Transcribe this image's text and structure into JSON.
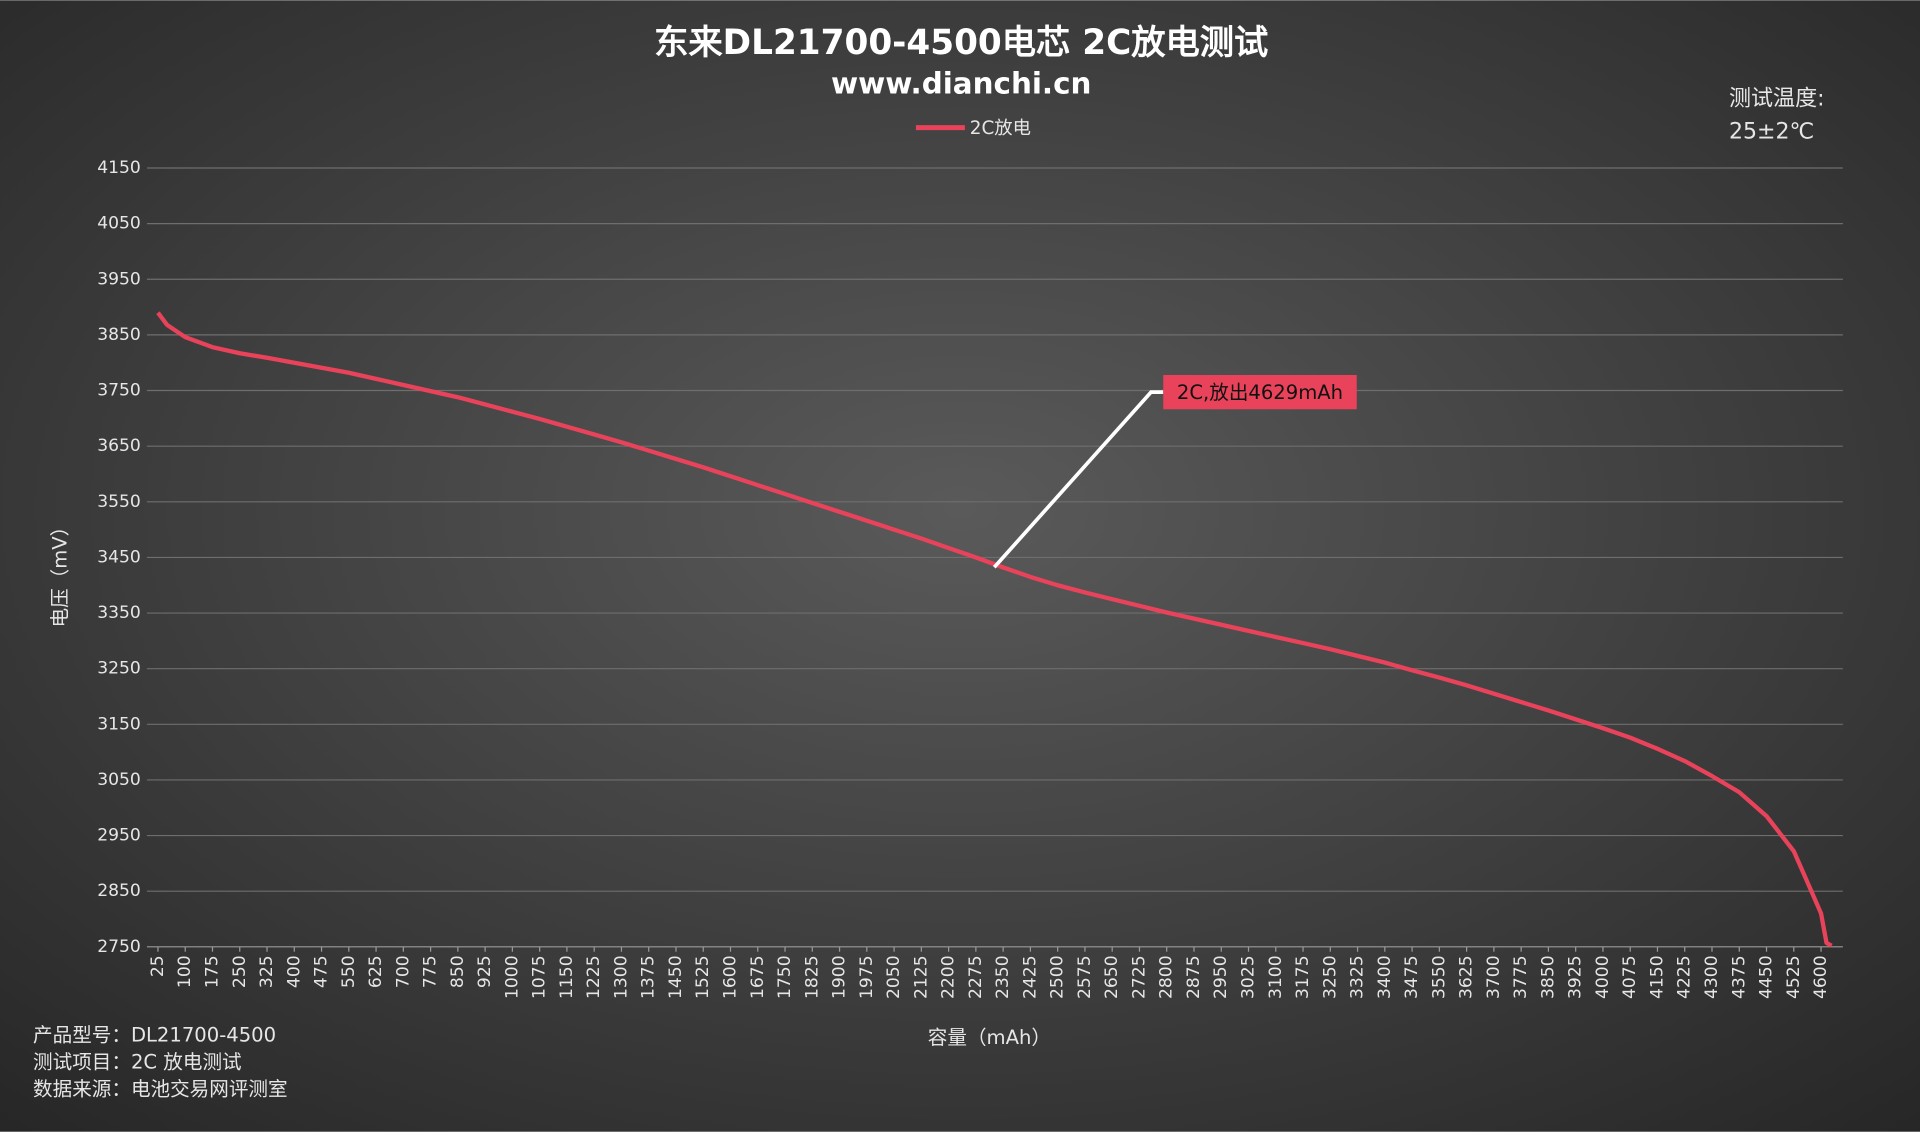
{
  "chart_data": {
    "type": "line",
    "title": "东来DL21700-4500电芯 2C放电测试",
    "subtitle": "www.dianchi.cn",
    "x_label": "容量（mAh）",
    "y_label": "电压（mV）",
    "note": [
      "测试温度:",
      "25±2℃"
    ],
    "annotations": [
      {
        "text": "2C,放出4629mAh"
      }
    ],
    "x": [
      25,
      50,
      75,
      100,
      175,
      250,
      325,
      400,
      475,
      550,
      625,
      700,
      775,
      850,
      925,
      1000,
      1075,
      1150,
      1225,
      1300,
      1375,
      1450,
      1525,
      1600,
      1675,
      1750,
      1825,
      1900,
      1975,
      2050,
      2125,
      2200,
      2275,
      2350,
      2425,
      2500,
      2575,
      2650,
      2725,
      2800,
      2875,
      2950,
      3025,
      3100,
      3175,
      3250,
      3325,
      3400,
      3475,
      3550,
      3625,
      3700,
      3775,
      3850,
      3925,
      4000,
      4075,
      4150,
      4225,
      4300,
      4375,
      4450,
      4525,
      4560,
      4600,
      4615,
      4629
    ],
    "series": [
      {
        "name": "2C放电",
        "color": "#e8435a",
        "values": [
          3890,
          3868,
          3857,
          3846,
          3828,
          3817,
          3809,
          3800,
          3791,
          3782,
          3771,
          3760,
          3749,
          3738,
          3725,
          3712,
          3699,
          3685,
          3671,
          3657,
          3642,
          3627,
          3612,
          3596,
          3580,
          3564,
          3548,
          3532,
          3516,
          3500,
          3484,
          3467,
          3450,
          3432,
          3415,
          3400,
          3387,
          3375,
          3363,
          3351,
          3340,
          3329,
          3318,
          3307,
          3296,
          3285,
          3273,
          3261,
          3247,
          3234,
          3220,
          3205,
          3190,
          3175,
          3159,
          3143,
          3126,
          3106,
          3084,
          3057,
          3028,
          2985,
          2922,
          2870,
          2810,
          2757,
          2752
        ]
      }
    ],
    "xlim": [
      25,
      4660
    ],
    "xticks": [
      25,
      100,
      175,
      250,
      325,
      400,
      475,
      550,
      625,
      700,
      775,
      850,
      925,
      1000,
      1075,
      1150,
      1225,
      1300,
      1375,
      1450,
      1525,
      1600,
      1675,
      1750,
      1825,
      1900,
      1975,
      2050,
      2125,
      2200,
      2275,
      2350,
      2425,
      2500,
      2575,
      2650,
      2725,
      2800,
      2875,
      2950,
      3025,
      3100,
      3175,
      3250,
      3325,
      3400,
      3475,
      3550,
      3625,
      3700,
      3775,
      3850,
      3925,
      4000,
      4075,
      4150,
      4225,
      4300,
      4375,
      4450,
      4525,
      4600
    ],
    "ylim": [
      2750,
      4150
    ],
    "yticks": [
      2750,
      2850,
      2950,
      3050,
      3150,
      3250,
      3350,
      3450,
      3550,
      3650,
      3750,
      3850,
      3950,
      4050,
      4150
    ],
    "grid": true
  },
  "footer": [
    "产品型号：DL21700-4500",
    "测试项目：2C 放电测试",
    "数据来源：电池交易网评测室"
  ]
}
